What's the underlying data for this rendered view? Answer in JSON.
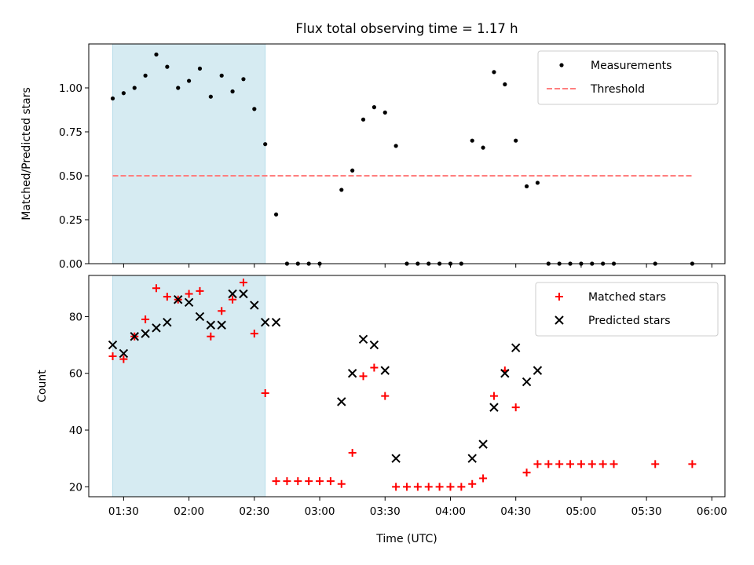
{
  "chart_data": {
    "type": "scatter",
    "title": "Flux total observing time = 1.17 h",
    "xlabel": "Time (UTC)",
    "xticks": [
      "01:30",
      "02:00",
      "02:30",
      "03:00",
      "03:30",
      "04:00",
      "04:30",
      "05:00",
      "05:30",
      "06:00"
    ],
    "xlim_minutes": [
      74,
      366
    ],
    "shaded_interval_minutes": [
      85,
      155
    ],
    "shade_color": "#add8e6",
    "panels": [
      {
        "ylabel": "Matched/Predicted stars",
        "ylim": [
          0,
          1.25
        ],
        "yticks": [
          "0.00",
          "0.25",
          "0.50",
          "0.75",
          "1.00"
        ],
        "legend_position": "upper right",
        "series": [
          {
            "name": "Measurements",
            "marker": "dot",
            "color": "#000000",
            "x": [
              85,
              90,
              95,
              100,
              105,
              110,
              115,
              120,
              125,
              130,
              135,
              140,
              145,
              150,
              155,
              160,
              165,
              170,
              175,
              180,
              190,
              195,
              200,
              205,
              210,
              215,
              220,
              225,
              230,
              235,
              240,
              245,
              250,
              255,
              260,
              265,
              270,
              275,
              280,
              285,
              290,
              295,
              300,
              305,
              310,
              315,
              334,
              351
            ],
            "y": [
              0.94,
              0.97,
              1.0,
              1.07,
              1.19,
              1.12,
              1.0,
              1.04,
              1.11,
              0.95,
              1.07,
              0.98,
              1.05,
              0.88,
              0.68,
              0.28,
              0.0,
              0.0,
              0.0,
              0.0,
              0.42,
              0.53,
              0.82,
              0.89,
              0.86,
              0.67,
              0.0,
              0.0,
              0.0,
              0.0,
              0.0,
              0.0,
              0.7,
              0.66,
              1.09,
              1.02,
              0.7,
              0.44,
              0.46,
              0.0,
              0.0,
              0.0,
              0.0,
              0.0,
              0.0,
              0.0,
              0.0,
              0.0
            ]
          },
          {
            "name": "Threshold",
            "type": "line",
            "style": "dashed",
            "color": "#ff7f7f",
            "x": [
              85,
              351
            ],
            "y": [
              0.5,
              0.5
            ]
          }
        ]
      },
      {
        "ylabel": "Count",
        "ylim": [
          16.5,
          94.5
        ],
        "yticks": [
          "20",
          "40",
          "60",
          "80"
        ],
        "legend_position": "upper right",
        "series": [
          {
            "name": "Matched stars",
            "marker": "plus",
            "color": "#ff0000",
            "x": [
              85,
              90,
              95,
              100,
              105,
              110,
              115,
              120,
              125,
              130,
              135,
              140,
              145,
              150,
              155,
              160,
              165,
              170,
              175,
              180,
              185,
              190,
              195,
              200,
              205,
              210,
              215,
              220,
              225,
              230,
              235,
              240,
              245,
              250,
              255,
              260,
              265,
              270,
              275,
              280,
              285,
              290,
              295,
              300,
              305,
              310,
              315,
              334,
              351
            ],
            "y": [
              66,
              65,
              73,
              79,
              90,
              87,
              86,
              88,
              89,
              73,
              82,
              86,
              92,
              74,
              53,
              22,
              22,
              22,
              22,
              22,
              22,
              21,
              32,
              59,
              62,
              52,
              20,
              20,
              20,
              20,
              20,
              20,
              20,
              21,
              23,
              52,
              61,
              48,
              25,
              28,
              28,
              28,
              28,
              28,
              28,
              28,
              28,
              28,
              28
            ]
          },
          {
            "name": "Predicted stars",
            "marker": "x",
            "color": "#000000",
            "x": [
              85,
              90,
              95,
              100,
              105,
              110,
              115,
              120,
              125,
              130,
              135,
              140,
              145,
              150,
              155,
              160,
              190,
              195,
              200,
              205,
              210,
              215,
              250,
              255,
              260,
              265,
              270,
              275,
              280
            ],
            "y": [
              70,
              67,
              73,
              74,
              76,
              78,
              86,
              85,
              80,
              77,
              77,
              88,
              88,
              84,
              78,
              78,
              50,
              60,
              72,
              70,
              61,
              30,
              30,
              35,
              48,
              60,
              69,
              57,
              61
            ]
          }
        ]
      }
    ]
  }
}
